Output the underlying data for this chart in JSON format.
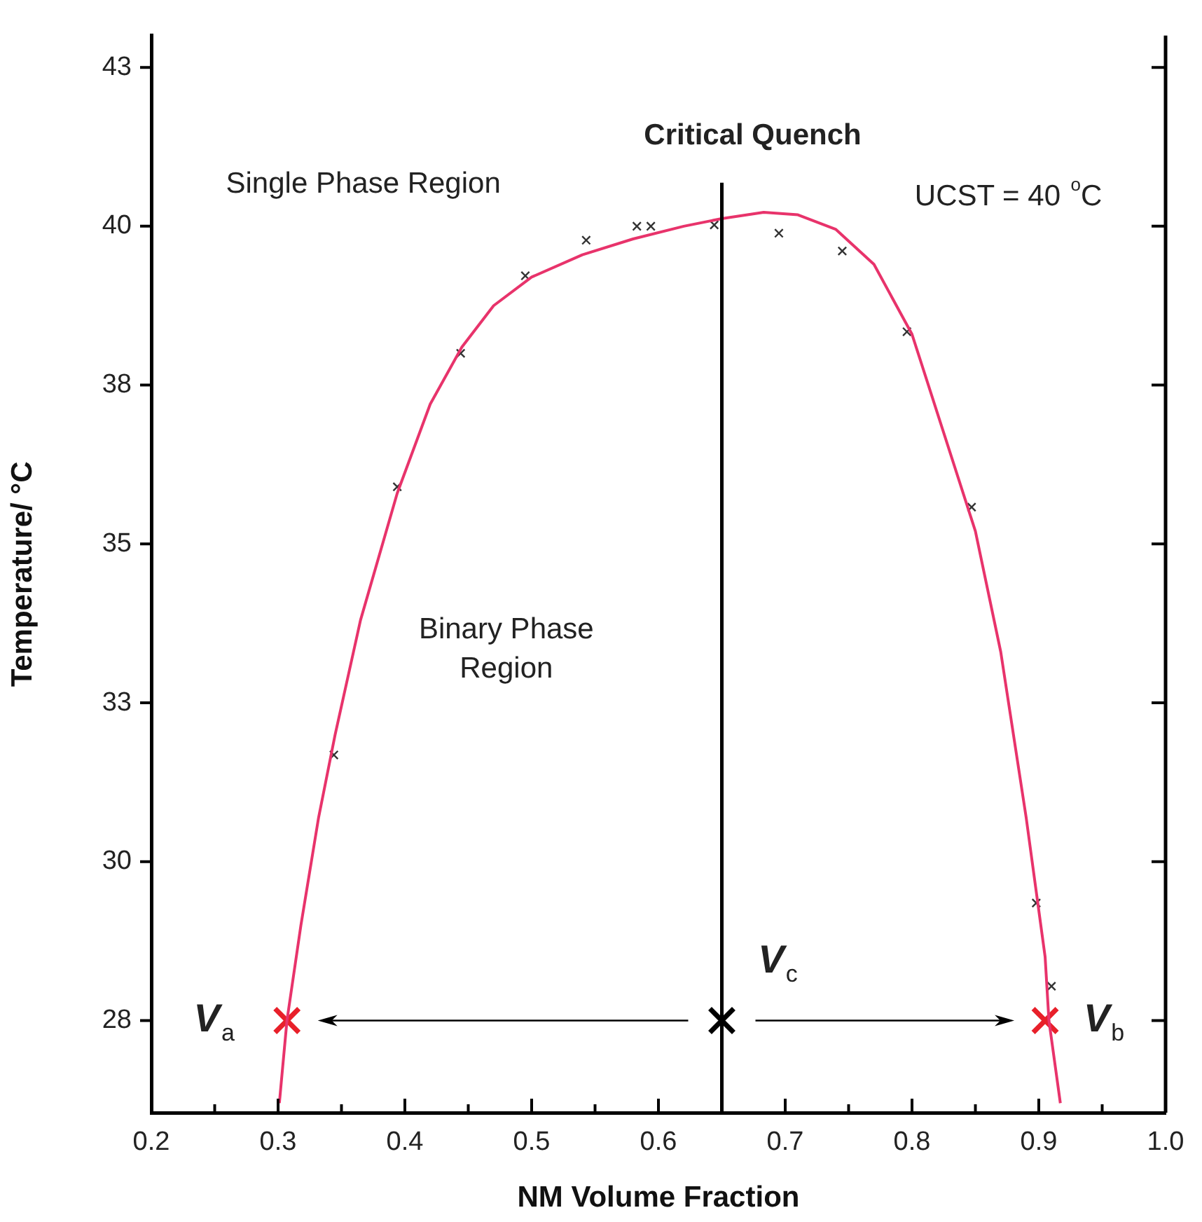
{
  "chart_data": {
    "type": "line",
    "xlabel": "NM Volume Fraction",
    "ylabel": "Temperature/ °C",
    "xlim": [
      0.2,
      1.0
    ],
    "xticks": [
      0.2,
      {
        "value": 0.25,
        "label": null
      },
      0.3,
      {
        "value": 0.35,
        "label": null
      },
      0.4,
      {
        "value": 0.45,
        "label": null
      },
      0.5,
      {
        "value": 0.55,
        "label": null
      },
      0.6,
      {
        "value": 0.65,
        "label": null
      },
      0.7,
      {
        "value": 0.75,
        "label": null
      },
      0.8,
      {
        "value": 0.85,
        "label": null
      },
      0.9,
      {
        "value": 0.95,
        "label": null
      },
      {
        "value": 1.0,
        "label": "1.0"
      }
    ],
    "ylim": [
      26.05,
      43
    ],
    "yticks": [
      {
        "value": 27.5,
        "label": "28"
      },
      30,
      {
        "value": 32.5,
        "label": "33"
      },
      35,
      {
        "value": 37.5,
        "label": "38"
      },
      40,
      {
        "value": 42.5,
        "label": "43"
      }
    ],
    "grid": false,
    "legend": false,
    "series": [
      {
        "color": "#e8336b",
        "marker": "none",
        "x": [
          0.301,
          0.307,
          0.318,
          0.332,
          0.345,
          0.365,
          0.394,
          0.42,
          0.445,
          0.47,
          0.5,
          0.54,
          0.58,
          0.62,
          0.65,
          0.683,
          0.71,
          0.74,
          0.77,
          0.8,
          0.825,
          0.85,
          0.87,
          0.89,
          0.905,
          0.908,
          0.917
        ],
        "values": [
          26.2,
          27.5,
          29.0,
          30.7,
          32.0,
          33.8,
          35.8,
          37.2,
          38.1,
          38.75,
          39.2,
          39.55,
          39.8,
          40.0,
          40.12,
          40.22,
          40.18,
          39.95,
          39.4,
          38.3,
          36.75,
          35.2,
          33.3,
          30.7,
          28.5,
          27.5,
          26.2
        ]
      },
      {
        "type": "scatter",
        "color": "#333333",
        "marker": "cross",
        "x": [
          0.344,
          0.394,
          0.444,
          0.495,
          0.543,
          0.583,
          0.594,
          0.644,
          0.695,
          0.745,
          0.796,
          0.847,
          0.898,
          0.91
        ],
        "values": [
          31.68,
          35.9,
          38.0,
          39.22,
          39.78,
          40.0,
          40.0,
          40.02,
          39.89,
          39.61,
          38.34,
          35.58,
          29.35,
          28.04
        ]
      },
      {
        "type": "scatter",
        "colors": [
          "#e8202a",
          "#000000",
          "#e8202a"
        ],
        "marker": "cross",
        "x": [
          0.307,
          0.65,
          0.905
        ],
        "values": [
          27.5,
          27.5,
          27.5
        ]
      }
    ],
    "ref_lines": [
      {
        "axis": "x",
        "value": 0.65,
        "label": "Critical Quench",
        "color": "#000000"
      }
    ],
    "annotations": [
      "Single Phase Region",
      "UCST = 40 $^{o}$C",
      "Binary Phase\nRegion",
      {
        "text": "V$_{a}$",
        "x": 0.307,
        "y": 27.5
      },
      {
        "text": "V$_{c}$",
        "x": 0.65,
        "y": 27.5
      },
      {
        "text": "V$_{b}$",
        "x": 0.905,
        "y": 27.5
      }
    ]
  }
}
